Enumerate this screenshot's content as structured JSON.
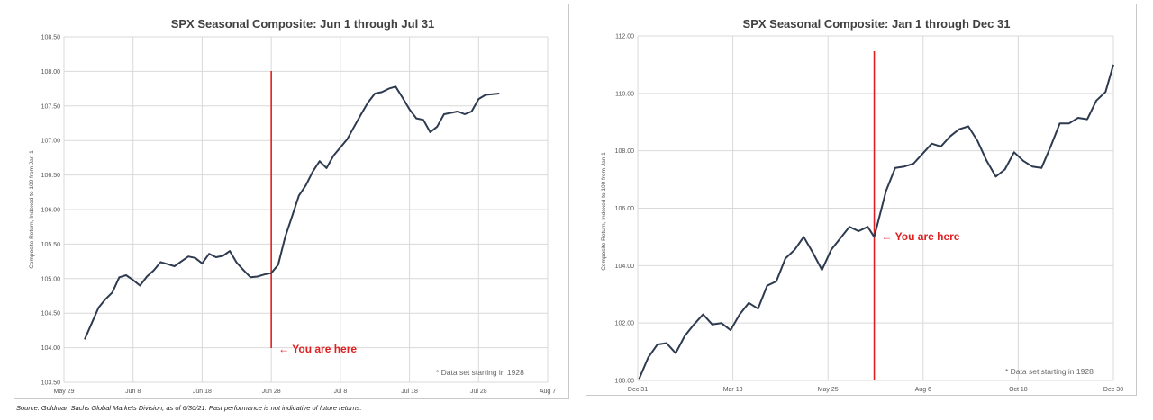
{
  "source_note": "Source: Goldman Sachs Global Markets Division, as of 6/30/21. Past performance is not indicative of future returns.",
  "chart_data": [
    {
      "type": "line",
      "title": "SPX Seasonal Composite: Jun 1 through Jul 31",
      "ylabel": "Composite Return, Indexed to 100 from Jan 1",
      "xlabel": "",
      "ylim": [
        103.5,
        108.5
      ],
      "xlim": [
        "2021-05-29",
        "2021-08-07"
      ],
      "grid": true,
      "y_ticks": [
        "103.50",
        "104.00",
        "104.50",
        "105.00",
        "105.50",
        "106.00",
        "106.50",
        "107.00",
        "107.50",
        "108.00",
        "108.50"
      ],
      "x_ticks": [
        "May 29",
        "Jun 8",
        "Jun 18",
        "Jun 28",
        "Jul 8",
        "Jul 18",
        "Jul 28",
        "Aug 7"
      ],
      "marker": {
        "x": "2021-06-28",
        "label": "← You are here"
      },
      "note": "* Data set starting in 1928",
      "series": [
        {
          "line_color": "#2d3a4f",
          "x": [
            "2021-06-01",
            "2021-06-02",
            "2021-06-03",
            "2021-06-04",
            "2021-06-05",
            "2021-06-06",
            "2021-06-07",
            "2021-06-08",
            "2021-06-09",
            "2021-06-10",
            "2021-06-11",
            "2021-06-12",
            "2021-06-13",
            "2021-06-14",
            "2021-06-15",
            "2021-06-16",
            "2021-06-17",
            "2021-06-18",
            "2021-06-19",
            "2021-06-20",
            "2021-06-21",
            "2021-06-22",
            "2021-06-23",
            "2021-06-24",
            "2021-06-25",
            "2021-06-26",
            "2021-06-27",
            "2021-06-28",
            "2021-06-29",
            "2021-06-30",
            "2021-07-01",
            "2021-07-02",
            "2021-07-03",
            "2021-07-04",
            "2021-07-05",
            "2021-07-06",
            "2021-07-07",
            "2021-07-08",
            "2021-07-09",
            "2021-07-10",
            "2021-07-11",
            "2021-07-12",
            "2021-07-13",
            "2021-07-14",
            "2021-07-15",
            "2021-07-16",
            "2021-07-17",
            "2021-07-18",
            "2021-07-19",
            "2021-07-20",
            "2021-07-21",
            "2021-07-22",
            "2021-07-23",
            "2021-07-24",
            "2021-07-25",
            "2021-07-26",
            "2021-07-27",
            "2021-07-28",
            "2021-07-29",
            "2021-07-30",
            "2021-07-31"
          ],
          "values": [
            104.12,
            104.35,
            104.58,
            104.7,
            104.8,
            105.02,
            105.05,
            104.98,
            104.9,
            105.03,
            105.12,
            105.24,
            105.21,
            105.18,
            105.25,
            105.32,
            105.3,
            105.22,
            105.36,
            105.31,
            105.33,
            105.4,
            105.23,
            105.12,
            105.02,
            105.03,
            105.06,
            105.08,
            105.2,
            105.6,
            105.9,
            106.2,
            106.35,
            106.55,
            106.7,
            106.6,
            106.78,
            106.9,
            107.02,
            107.2,
            107.38,
            107.55,
            107.68,
            107.7,
            107.75,
            107.78,
            107.62,
            107.45,
            107.32,
            107.3,
            107.12,
            107.2,
            107.38,
            107.4,
            107.42,
            107.38,
            107.42,
            107.6,
            107.66,
            107.67,
            107.68
          ]
        }
      ]
    },
    {
      "type": "line",
      "title": "SPX Seasonal Composite: Jan 1 through Dec 31",
      "ylabel": "Composite Return, Indexed to 100 from Jan 1",
      "xlabel": "",
      "ylim": [
        100,
        112
      ],
      "xlim": [
        "2020-12-31",
        "2021-12-30"
      ],
      "grid": true,
      "y_ticks": [
        "100.00",
        "102.00",
        "104.00",
        "106.00",
        "108.00",
        "110.00",
        "112.00"
      ],
      "x_ticks": [
        "Dec 31",
        "Mar 13",
        "May 25",
        "Aug 6",
        "Oct 18",
        "Dec 30"
      ],
      "marker": {
        "x": "2021-06-30",
        "label": "← You are here"
      },
      "note": "* Data set starting in 1928",
      "series": [
        {
          "line_color": "#2d3a4f",
          "x": [
            "2021-01-01",
            "2021-01-08",
            "2021-01-15",
            "2021-01-22",
            "2021-01-29",
            "2021-02-05",
            "2021-02-12",
            "2021-02-19",
            "2021-02-26",
            "2021-03-05",
            "2021-03-12",
            "2021-03-19",
            "2021-03-26",
            "2021-04-02",
            "2021-04-09",
            "2021-04-16",
            "2021-04-23",
            "2021-04-30",
            "2021-05-07",
            "2021-05-14",
            "2021-05-21",
            "2021-05-28",
            "2021-06-04",
            "2021-06-11",
            "2021-06-18",
            "2021-06-25",
            "2021-06-30",
            "2021-07-09",
            "2021-07-16",
            "2021-07-23",
            "2021-07-30",
            "2021-08-06",
            "2021-08-13",
            "2021-08-20",
            "2021-08-27",
            "2021-09-03",
            "2021-09-10",
            "2021-09-17",
            "2021-09-24",
            "2021-10-01",
            "2021-10-08",
            "2021-10-15",
            "2021-10-22",
            "2021-10-29",
            "2021-11-05",
            "2021-11-12",
            "2021-11-19",
            "2021-11-26",
            "2021-12-03",
            "2021-12-10",
            "2021-12-17",
            "2021-12-24",
            "2021-12-30"
          ],
          "values": [
            100.05,
            100.8,
            101.25,
            101.3,
            100.95,
            101.55,
            101.95,
            102.3,
            101.95,
            102.0,
            101.75,
            102.3,
            102.7,
            102.5,
            103.3,
            103.45,
            104.25,
            104.55,
            105.0,
            104.45,
            103.85,
            104.55,
            104.95,
            105.35,
            105.2,
            105.35,
            105.0,
            106.6,
            107.4,
            107.45,
            107.55,
            107.9,
            108.25,
            108.15,
            108.5,
            108.75,
            108.85,
            108.35,
            107.65,
            107.1,
            107.35,
            107.95,
            107.65,
            107.45,
            107.4,
            108.15,
            108.95,
            108.95,
            109.15,
            109.1,
            109.75,
            110.05,
            111.0
          ]
        }
      ]
    }
  ]
}
